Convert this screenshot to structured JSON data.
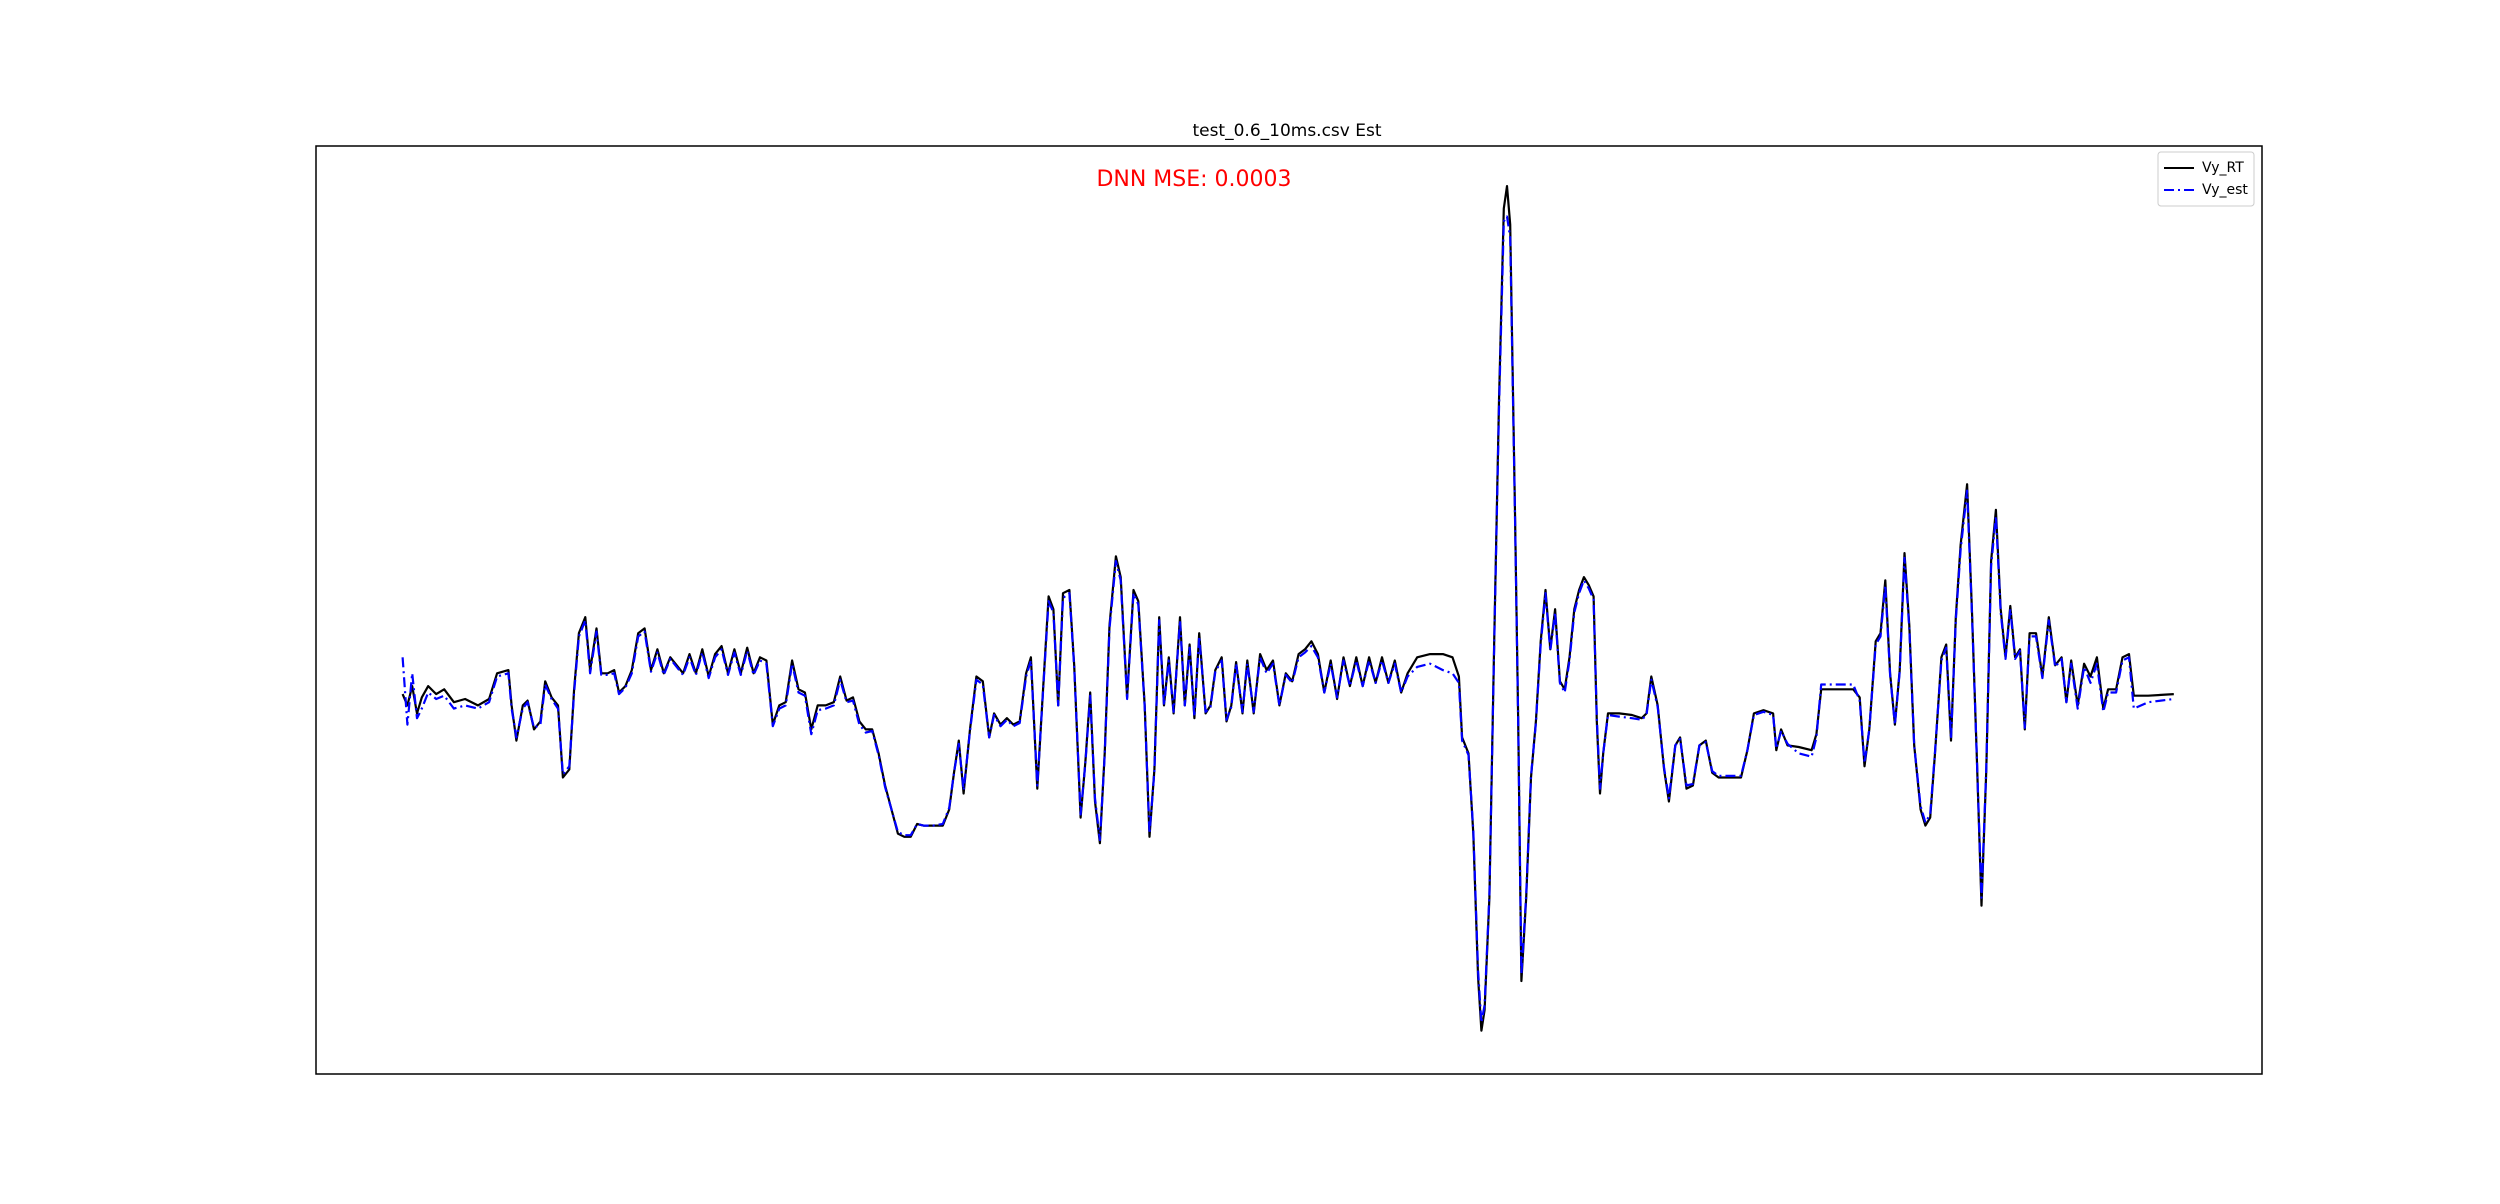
{
  "chart_data": {
    "type": "line",
    "title": "test_0.6_10ms.csv Est",
    "annotation": "DNN MSE: 0.0003",
    "annotation_color": "#ff0000",
    "legend": "upper right",
    "xlim": [
      -54,
      1160
    ],
    "ylim": [
      -290,
      289
    ],
    "x": [
      0,
      3,
      6,
      9,
      12,
      16,
      21,
      26,
      32,
      39,
      47,
      54,
      59,
      66,
      68,
      71,
      75,
      78,
      82,
      86,
      89,
      93,
      97,
      100,
      104,
      107,
      110,
      114,
      117,
      121,
      124,
      128,
      132,
      135,
      139,
      143,
      147,
      151,
      155,
      159,
      163,
      167,
      171,
      175,
      179,
      183,
      187,
      191,
      195,
      199,
      203,
      207,
      211,
      215,
      219,
      223,
      227,
      231,
      235,
      239,
      243,
      247,
      251,
      255,
      259,
      264,
      269,
      273,
      277,
      281,
      285,
      289,
      293,
      297,
      301,
      305,
      309,
      313,
      317,
      321,
      325,
      331,
      337,
      341,
      344,
      347,
      350,
      354,
      358,
      362,
      366,
      369,
      373,
      377,
      381,
      385,
      389,
      392,
      396,
      399,
      403,
      406,
      409,
      412,
      416,
      419,
      423,
      426,
      429,
      432,
      435,
      438,
      441,
      445,
      448,
      452,
      456,
      459,
      463,
      466,
      469,
      472,
      475,
      478,
      481,
      485,
      488,
      491,
      494,
      497,
      501,
      504,
      507,
      511,
      514,
      517,
      520,
      524,
      527,
      531,
      535,
      539,
      543,
      547,
      551,
      555,
      559,
      563,
      567,
      571,
      575,
      579,
      583,
      587,
      591,
      595,
      599,
      603,
      607,
      611,
      615,
      619,
      623,
      627,
      633,
      641,
      649,
      655,
      659,
      661,
      665,
      668,
      671,
      673,
      675,
      678,
      681,
      684,
      687,
      689,
      691,
      694,
      696,
      698,
      701,
      704,
      707,
      710,
      713,
      716,
      719,
      722,
      725,
      728,
      731,
      734,
      737,
      740,
      743,
      745,
      747,
      749,
      752,
      759,
      767,
      773,
      776,
      779,
      783,
      787,
      790,
      794,
      797,
      801,
      805,
      809,
      813,
      817,
      821,
      829,
      835,
      839,
      843,
      849,
      855,
      857,
      860,
      864,
      871,
      879,
      882,
      885,
      894,
      905,
      909,
      912,
      915,
      919,
      922,
      925,
      928,
      931,
      934,
      937,
      940,
      943,
      947,
      950,
      953,
      956,
      960,
      963,
      966,
      969,
      972,
      976,
      979,
      982,
      985,
      988,
      991,
      994,
      997,
      1000,
      1003,
      1006,
      1009,
      1012,
      1015,
      1019,
      1023,
      1027,
      1031,
      1035,
      1038,
      1041,
      1045,
      1049,
      1053,
      1057,
      1061,
      1064,
      1069,
      1073,
      1077,
      1080,
      1089,
      1105
    ],
    "series": [
      {
        "name": "Vy_RT",
        "color": "#000000",
        "linestyle": "solid",
        "values": [
          -53,
          -60,
          -48,
          -65,
          -55,
          -48,
          -53,
          -50,
          -58,
          -56,
          -60,
          -56,
          -40,
          -38,
          -60,
          -82,
          -60,
          -57,
          -75,
          -70,
          -45,
          -55,
          -60,
          -105,
          -100,
          -50,
          -15,
          -5,
          -38,
          -12,
          -40,
          -40,
          -38,
          -52,
          -48,
          -38,
          -15,
          -12,
          -38,
          -25,
          -40,
          -30,
          -35,
          -40,
          -28,
          -40,
          -25,
          -42,
          -28,
          -23,
          -40,
          -25,
          -40,
          -24,
          -40,
          -30,
          -32,
          -72,
          -60,
          -58,
          -32,
          -50,
          -52,
          -75,
          -60,
          -60,
          -58,
          -42,
          -57,
          -55,
          -70,
          -75,
          -75,
          -90,
          -110,
          -125,
          -140,
          -142,
          -142,
          -134,
          -135,
          -135,
          -135,
          -125,
          -102,
          -82,
          -115,
          -75,
          -42,
          -45,
          -80,
          -65,
          -72,
          -68,
          -72,
          -70,
          -40,
          -30,
          -112,
          -60,
          8,
          0,
          -60,
          10,
          12,
          -35,
          -130,
          -95,
          -52,
          -120,
          -146,
          -90,
          -10,
          33,
          20,
          -55,
          12,
          5,
          -60,
          -142,
          -100,
          -5,
          -60,
          -30,
          -65,
          -5,
          -60,
          -22,
          -68,
          -15,
          -65,
          -60,
          -38,
          -30,
          -70,
          -60,
          -33,
          -65,
          -32,
          -65,
          -28,
          -38,
          -32,
          -60,
          -40,
          -45,
          -28,
          -25,
          -20,
          -28,
          -52,
          -32,
          -56,
          -30,
          -48,
          -30,
          -48,
          -30,
          -46,
          -30,
          -46,
          -32,
          -52,
          -40,
          -30,
          -28,
          -28,
          -30,
          -42,
          -80,
          -90,
          -140,
          -230,
          -263,
          -250,
          -180,
          -20,
          130,
          250,
          264,
          240,
          60,
          -70,
          -232,
          -180,
          -105,
          -70,
          -20,
          12,
          -25,
          0,
          -45,
          -50,
          -30,
          0,
          12,
          20,
          15,
          8,
          -70,
          -115,
          -90,
          -65,
          -65,
          -66,
          -68,
          -65,
          -42,
          -60,
          -100,
          -120,
          -85,
          -80,
          -112,
          -110,
          -85,
          -82,
          -102,
          -105,
          -105,
          -105,
          -88,
          -65,
          -63,
          -65,
          -88,
          -75,
          -85,
          -86,
          -88,
          -78,
          -50,
          -50,
          -50,
          -55,
          -98,
          -75,
          -20,
          -15,
          18,
          -40,
          -72,
          -38,
          35,
          -10,
          -85,
          -125,
          -135,
          -130,
          -90,
          -30,
          -22,
          -82,
          -5,
          40,
          78,
          0,
          -90,
          -185,
          -100,
          30,
          62,
          0,
          -30,
          2,
          -30,
          -25,
          -75,
          -15,
          -15,
          -42,
          -5,
          -35,
          -30,
          -58,
          -32,
          -60,
          -34,
          -42,
          -30,
          -62,
          -50,
          -50,
          -30,
          -28,
          -54,
          -54,
          -53
        ]
      },
      {
        "name": "Vy_est",
        "color": "#0000ff",
        "linestyle": "dashdot",
        "values": [
          -30,
          -72,
          -40,
          -68,
          -62,
          -52,
          -56,
          -54,
          -62,
          -60,
          -62,
          -58,
          -42,
          -40,
          -62,
          -80,
          -62,
          -58,
          -74,
          -72,
          -47,
          -56,
          -62,
          -103,
          -98,
          -52,
          -17,
          -7,
          -40,
          -14,
          -41,
          -41,
          -40,
          -53,
          -49,
          -40,
          -17,
          -14,
          -39,
          -27,
          -41,
          -31,
          -36,
          -41,
          -30,
          -41,
          -27,
          -43,
          -30,
          -25,
          -41,
          -27,
          -41,
          -26,
          -41,
          -32,
          -34,
          -73,
          -62,
          -60,
          -34,
          -52,
          -54,
          -78,
          -63,
          -62,
          -60,
          -44,
          -58,
          -57,
          -72,
          -77,
          -76,
          -91,
          -111,
          -125,
          -139,
          -141,
          -141,
          -134,
          -135,
          -135,
          -134,
          -124,
          -102,
          -84,
          -113,
          -76,
          -44,
          -47,
          -80,
          -66,
          -73,
          -69,
          -73,
          -71,
          -42,
          -32,
          -110,
          -61,
          5,
          -2,
          -60,
          7,
          10,
          -36,
          -128,
          -96,
          -54,
          -118,
          -144,
          -91,
          -12,
          30,
          18,
          -56,
          10,
          3,
          -61,
          -140,
          -101,
          -7,
          -60,
          -32,
          -64,
          -7,
          -60,
          -24,
          -67,
          -17,
          -64,
          -61,
          -39,
          -32,
          -69,
          -61,
          -34,
          -64,
          -34,
          -64,
          -30,
          -40,
          -34,
          -60,
          -41,
          -46,
          -30,
          -27,
          -23,
          -30,
          -52,
          -34,
          -55,
          -32,
          -48,
          -32,
          -48,
          -32,
          -46,
          -32,
          -46,
          -34,
          -52,
          -42,
          -36,
          -34,
          -38,
          -40,
          -46,
          -82,
          -91,
          -138,
          -226,
          -258,
          -247,
          -178,
          -22,
          125,
          242,
          245,
          232,
          58,
          -70,
          -228,
          -178,
          -104,
          -71,
          -22,
          10,
          -26,
          -2,
          -46,
          -52,
          -32,
          -2,
          10,
          18,
          13,
          6,
          -68,
          -112,
          -90,
          -66,
          -67,
          -68,
          -69,
          -66,
          -44,
          -61,
          -99,
          -118,
          -85,
          -81,
          -110,
          -109,
          -85,
          -83,
          -101,
          -104,
          -104,
          -104,
          -88,
          -66,
          -64,
          -66,
          -87,
          -76,
          -84,
          -90,
          -92,
          -80,
          -47,
          -47,
          -47,
          -57,
          -96,
          -75,
          -22,
          -17,
          15,
          -41,
          -72,
          -39,
          32,
          -12,
          -85,
          -123,
          -133,
          -128,
          -89,
          -32,
          -24,
          -81,
          -7,
          37,
          74,
          -2,
          -90,
          -180,
          -99,
          27,
          58,
          -2,
          -31,
          0,
          -31,
          -26,
          -74,
          -17,
          -17,
          -43,
          -7,
          -36,
          -31,
          -58,
          -34,
          -62,
          -36,
          -46,
          -34,
          -64,
          -52,
          -52,
          -32,
          -30,
          -62,
          -58,
          -56
        ]
      }
    ]
  }
}
